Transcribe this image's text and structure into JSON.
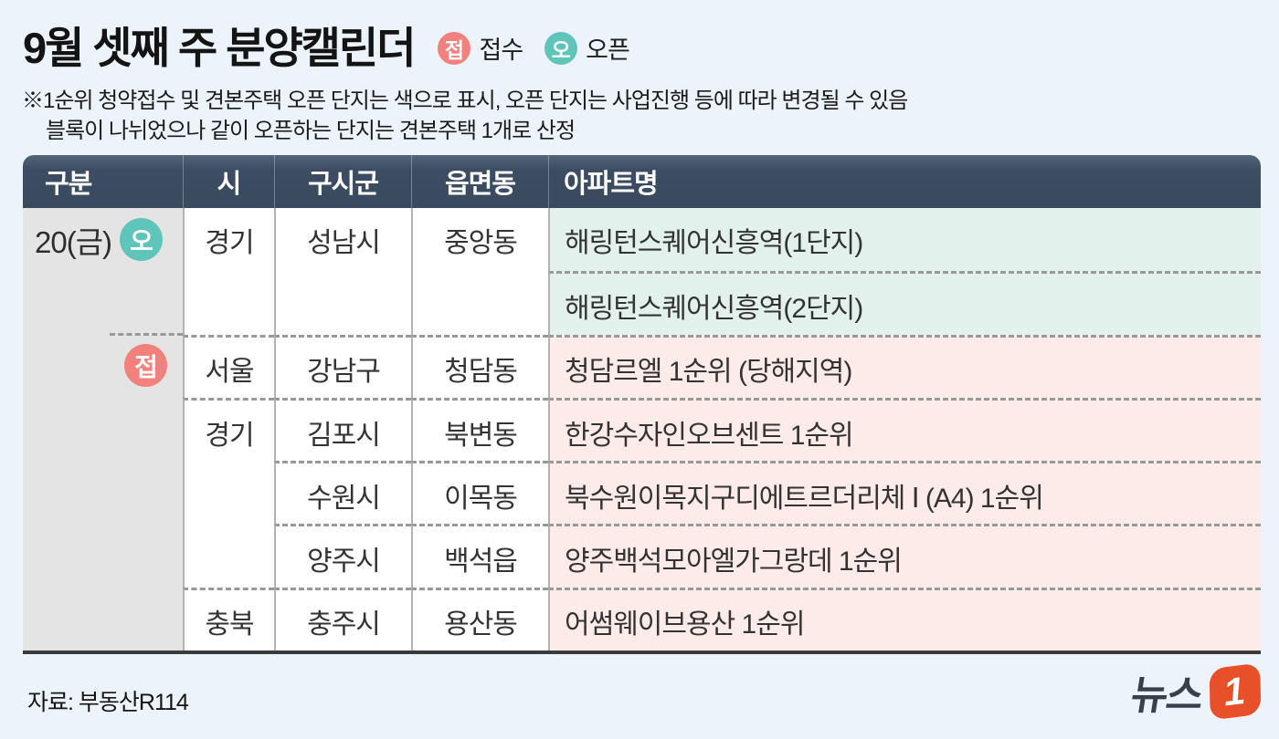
{
  "title": "9월 셋째 주 분양캘린더",
  "legend": {
    "apply_badge": "접",
    "apply_label": "접수",
    "open_badge": "오",
    "open_label": "오픈"
  },
  "notes": {
    "line1": "※1순위 청약접수 및 견본주택 오픈 단지는 색으로  표시, 오픈 단지는 사업진행 등에 따라 변경될 수 있음",
    "line2": "블록이 나뉘었으나 같이 오픈하는 단지는 견본주택 1개로 산정"
  },
  "table": {
    "headers": {
      "gubun": "구분",
      "si": "시",
      "gusigun": "구시군",
      "eupmyeondong": "읍면동",
      "apartment": "아파트명"
    },
    "date": "20(금)",
    "open_badge": "오",
    "apply_badge": "접",
    "si": [
      {
        "label": "경기",
        "rowspan": 2
      },
      {
        "label": "서울",
        "rowspan": 1
      },
      {
        "label": "경기",
        "rowspan": 3
      },
      {
        "label": "충북",
        "rowspan": 1
      }
    ],
    "gusigun": [
      {
        "label": "성남시",
        "rowspan": 2
      },
      {
        "label": "강남구",
        "rowspan": 1
      },
      {
        "label": "김포시",
        "rowspan": 1
      },
      {
        "label": "수원시",
        "rowspan": 1
      },
      {
        "label": "양주시",
        "rowspan": 1
      },
      {
        "label": "충주시",
        "rowspan": 1
      }
    ],
    "eupmyeondong": [
      {
        "label": "중앙동",
        "rowspan": 2
      },
      {
        "label": "청담동",
        "rowspan": 1
      },
      {
        "label": "북변동",
        "rowspan": 1
      },
      {
        "label": "이목동",
        "rowspan": 1
      },
      {
        "label": "백석읍",
        "rowspan": 1
      },
      {
        "label": "용산동",
        "rowspan": 1
      }
    ],
    "apartments": [
      {
        "name": "해링턴스퀘어신흥역(1단지)",
        "status": "open"
      },
      {
        "name": "해링턴스퀘어신흥역(2단지)",
        "status": "open"
      },
      {
        "name": "청담르엘 1순위 (당해지역)",
        "status": "apply"
      },
      {
        "name": "한강수자인오브센트 1순위",
        "status": "apply"
      },
      {
        "name": "북수원이목지구디에트르더리체 Ⅰ (A4) 1순위",
        "status": "apply"
      },
      {
        "name": "양주백석모아엘가그랑데 1순위",
        "status": "apply"
      },
      {
        "name": "어썸웨이브용산 1순위",
        "status": "apply"
      }
    ]
  },
  "source": "자료: 부동산R114",
  "logo": {
    "text": "뉴스",
    "number": "1"
  },
  "colors": {
    "page_bg": "#edf3fa",
    "header_bg": "#3b4b60",
    "open_accent": "#5fc5ba",
    "apply_accent": "#f2807c",
    "open_cell_bg": "#e3f1ec",
    "apply_cell_bg": "#fcebe8",
    "gubun_col_bg": "#e4e4e5",
    "logo_orange": "#e8502a"
  }
}
